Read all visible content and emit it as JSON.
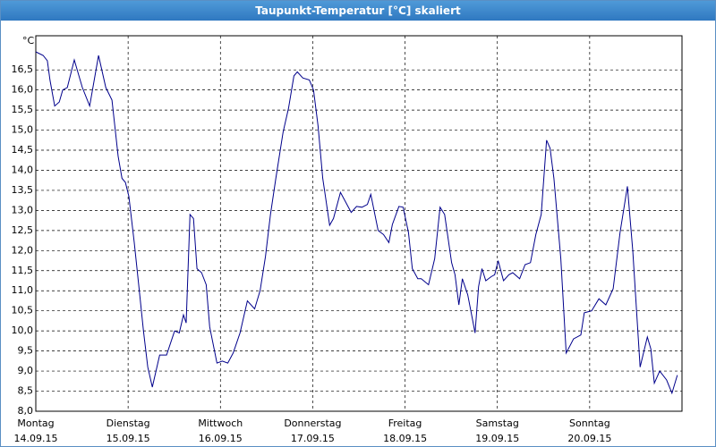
{
  "window_title": "Taupunkt-Temperatur [°C] skaliert",
  "chart_data": {
    "type": "line",
    "y_unit": "°C",
    "xlim": [
      0,
      168
    ],
    "ylim": [
      8,
      17.35
    ],
    "xticks": [
      {
        "value": 0,
        "label": "Montag",
        "date": "14.09.15"
      },
      {
        "value": 24,
        "label": "Dienstag",
        "date": "15.09.15"
      },
      {
        "value": 48,
        "label": "Mittwoch",
        "date": "16.09.15"
      },
      {
        "value": 72,
        "label": "Donnerstag",
        "date": "17.09.15"
      },
      {
        "value": 96,
        "label": "Freitag",
        "date": "18.09.15"
      },
      {
        "value": 120,
        "label": "Samstag",
        "date": "19.09.15"
      },
      {
        "value": 144,
        "label": "Sonntag",
        "date": "20.09.15"
      }
    ],
    "yticks": [
      {
        "value": 8,
        "label": "8,0"
      },
      {
        "value": 8.5,
        "label": "8,5"
      },
      {
        "value": 9,
        "label": "9,0"
      },
      {
        "value": 9.5,
        "label": "9,5"
      },
      {
        "value": 10,
        "label": "10,0"
      },
      {
        "value": 10.5,
        "label": "10,5"
      },
      {
        "value": 11,
        "label": "11,0"
      },
      {
        "value": 11.5,
        "label": "11,5"
      },
      {
        "value": 12,
        "label": "12,0"
      },
      {
        "value": 12.5,
        "label": "12,5"
      },
      {
        "value": 13,
        "label": "13,0"
      },
      {
        "value": 13.5,
        "label": "13,5"
      },
      {
        "value": 14,
        "label": "14,0"
      },
      {
        "value": 14.5,
        "label": "14,5"
      },
      {
        "value": 15,
        "label": "15,0"
      },
      {
        "value": 15.5,
        "label": "15,5"
      },
      {
        "value": 16,
        "label": "16,0"
      },
      {
        "value": 16.5,
        "label": "16,5"
      }
    ],
    "grid": true,
    "series": [
      {
        "color": "#00008b",
        "x": [
          0,
          1.9,
          3.0,
          3.7,
          4.9,
          6.1,
          7.0,
          8.2,
          10.0,
          12.1,
          14.0,
          16.3,
          18.2,
          19.8,
          21.4,
          22.4,
          23.3,
          24.2,
          25.6,
          26.8,
          28.0,
          29.1,
          30.3,
          32.2,
          34.0,
          36.1,
          37.3,
          38.4,
          39.1,
          40.1,
          41.0,
          41.9,
          43.1,
          44.3,
          45.2,
          47.1,
          48.5,
          49.9,
          51.3,
          53.1,
          55.0,
          56.9,
          58.3,
          59.7,
          61.0,
          62.4,
          64.3,
          65.7,
          67.1,
          68.0,
          69.4,
          71.1,
          72.2,
          73.4,
          74.6,
          75.3,
          76.4,
          77.4,
          79.2,
          80.6,
          82.0,
          83.4,
          84.8,
          86.2,
          87.1,
          89.0,
          90.4,
          91.8,
          92.7,
          94.4,
          95.5,
          96.9,
          97.9,
          99.3,
          100.2,
          102.1,
          103.7,
          105.1,
          106.3,
          108.1,
          109.0,
          110.0,
          110.9,
          112.3,
          113.2,
          114.2,
          115.1,
          116.0,
          117.0,
          118.4,
          119.3,
          120.2,
          121.6,
          123.0,
          124.0,
          125.8,
          127.2,
          128.6,
          130.0,
          131.4,
          132.8,
          133.7,
          134.7,
          136.5,
          137.9,
          139.8,
          141.7,
          142.6,
          144.5,
          146.4,
          148.2,
          150.1,
          151.9,
          153.8,
          155.2,
          157.1,
          159.0,
          159.9,
          160.8,
          162.2,
          164.0,
          165.4,
          166.8
        ],
        "values": [
          16.95,
          16.86,
          16.73,
          16.24,
          15.6,
          15.7,
          16.0,
          16.06,
          16.75,
          16.06,
          15.6,
          16.86,
          16.06,
          15.75,
          14.35,
          13.8,
          13.7,
          13.35,
          12.2,
          11.1,
          10.0,
          9.1,
          8.6,
          9.4,
          9.4,
          10.0,
          9.95,
          10.4,
          10.2,
          12.9,
          12.8,
          11.55,
          11.45,
          11.15,
          10.1,
          9.2,
          9.25,
          9.2,
          9.45,
          9.95,
          10.75,
          10.55,
          11.0,
          11.85,
          12.9,
          13.8,
          14.95,
          15.55,
          16.35,
          16.45,
          16.3,
          16.25,
          16.0,
          15.1,
          13.8,
          13.35,
          12.63,
          12.8,
          13.45,
          13.2,
          12.95,
          13.1,
          13.08,
          13.15,
          13.4,
          12.5,
          12.4,
          12.2,
          12.65,
          13.1,
          13.08,
          12.45,
          11.55,
          11.3,
          11.3,
          11.15,
          11.8,
          13.08,
          12.9,
          11.7,
          11.4,
          10.65,
          11.3,
          10.9,
          10.45,
          9.95,
          11.1,
          11.55,
          11.25,
          11.35,
          11.4,
          11.75,
          11.25,
          11.4,
          11.45,
          11.3,
          11.65,
          11.7,
          12.4,
          12.9,
          14.75,
          14.55,
          13.8,
          11.8,
          9.45,
          9.8,
          9.9,
          10.45,
          10.5,
          10.8,
          10.65,
          11.05,
          12.45,
          13.6,
          12.0,
          9.1,
          9.85,
          9.55,
          8.7,
          9.0,
          8.78,
          8.45,
          8.9
        ]
      }
    ]
  }
}
